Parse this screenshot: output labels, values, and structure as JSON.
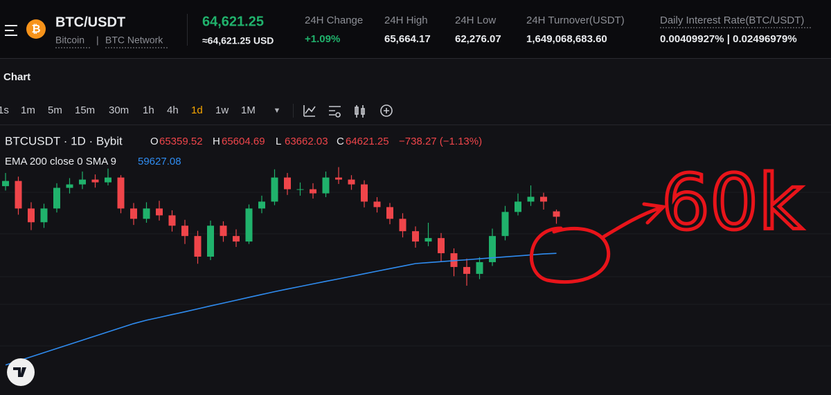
{
  "header": {
    "pair": "BTC/USDT",
    "coin": "Bitcoin",
    "separator": "|",
    "network": "BTC Network",
    "last_price": "64,621.25",
    "usd_price": "≈64,621.25 USD",
    "stats": [
      {
        "label": "24H Change",
        "value": "+1.09%"
      },
      {
        "label": "24H High",
        "value": "65,664.17"
      },
      {
        "label": "24H Low",
        "value": "62,276.07"
      },
      {
        "label": "24H Turnover(USDT)",
        "value": "1,649,068,683.60"
      },
      {
        "label": "Daily Interest Rate(BTC/USDT)",
        "value": "0.00409927% | 0.02496979%"
      }
    ]
  },
  "panel_title": "Chart",
  "toolbar": {
    "intervals": [
      "1s",
      "1m",
      "5m",
      "15m",
      "30m",
      "1h",
      "4h",
      "1d",
      "1w",
      "1M"
    ],
    "active_interval": "1d"
  },
  "chart_data": {
    "type": "candlestick",
    "title": "BTCUSDT · 1D · Bybit",
    "ohlc_labels": [
      "O",
      "H",
      "L",
      "C"
    ],
    "change": "−738.27 (−1.13%)",
    "up_color": "#20b26c",
    "down_color": "#ef454a",
    "ylim": [
      40745,
      77030
    ],
    "candles": [
      [
        68800,
        70600,
        68200,
        69509
      ],
      [
        69509,
        70100,
        64900,
        65749
      ],
      [
        65749,
        66600,
        62800,
        63869
      ],
      [
        63869,
        66400,
        63100,
        65749
      ],
      [
        65749,
        69200,
        65200,
        68569
      ],
      [
        68569,
        69900,
        67800,
        69039
      ],
      [
        69039,
        70800,
        68400,
        69697
      ],
      [
        69697,
        70400,
        68600,
        69321
      ],
      [
        69321,
        71200,
        68900,
        69979
      ],
      [
        69979,
        70300,
        65100,
        65749
      ],
      [
        65749,
        66500,
        63500,
        64339
      ],
      [
        64339,
        66600,
        63800,
        65749
      ],
      [
        65749,
        66800,
        64100,
        64809
      ],
      [
        64809,
        65500,
        62600,
        63399
      ],
      [
        63399,
        64200,
        60900,
        61989
      ],
      [
        61989,
        62700,
        58200,
        59169
      ],
      [
        59169,
        64100,
        58700,
        63399
      ],
      [
        63399,
        64000,
        61200,
        61989
      ],
      [
        61989,
        62900,
        60500,
        61237
      ],
      [
        61237,
        66300,
        60900,
        65749
      ],
      [
        65749,
        67500,
        65100,
        66689
      ],
      [
        66689,
        71100,
        66200,
        69979
      ],
      [
        69979,
        70600,
        67600,
        68381
      ],
      [
        68381,
        69300,
        67500,
        68381
      ],
      [
        68381,
        69200,
        67100,
        67817
      ],
      [
        67817,
        70800,
        67300,
        69979
      ],
      [
        69979,
        71400,
        69100,
        69697
      ],
      [
        69697,
        70300,
        68300,
        69039
      ],
      [
        69039,
        69600,
        65900,
        66689
      ],
      [
        66689,
        67300,
        65200,
        65937
      ],
      [
        65937,
        66500,
        63600,
        64339
      ],
      [
        64339,
        65100,
        61800,
        62649
      ],
      [
        62649,
        63300,
        60400,
        61237
      ],
      [
        61237,
        63800,
        60600,
        61707
      ],
      [
        61707,
        62400,
        58500,
        59639
      ],
      [
        59639,
        60300,
        56500,
        57759
      ],
      [
        57759,
        58900,
        55200,
        56819
      ],
      [
        56819,
        59100,
        56100,
        58417
      ],
      [
        58417,
        63000,
        57900,
        61989
      ],
      [
        61989,
        66100,
        61400,
        65279
      ],
      [
        65279,
        67800,
        64800,
        66689
      ],
      [
        66689,
        68900,
        66100,
        67347
      ],
      [
        67347,
        67900,
        65600,
        66689
      ],
      [
        65359.52,
        65604.69,
        63662.03,
        64621.25
      ]
    ],
    "indicator": {
      "name": "EMA 200 close 0 SMA 9",
      "color": "#2f8cf0",
      "values": [
        44373,
        44937,
        45501,
        46065,
        46629,
        47203,
        47767,
        48331,
        48895,
        49459,
        50023,
        50483,
        50869,
        51264,
        51640,
        52034,
        52439,
        52833,
        53219,
        53614,
        53999,
        54394,
        54751,
        55099,
        55447,
        55794,
        56142,
        56490,
        56838,
        57186,
        57533,
        57881,
        58229,
        58361,
        58492,
        58624,
        58746,
        58878,
        59009,
        59141,
        59272,
        59404,
        59536,
        59627.08
      ]
    },
    "annotation": "60k"
  }
}
